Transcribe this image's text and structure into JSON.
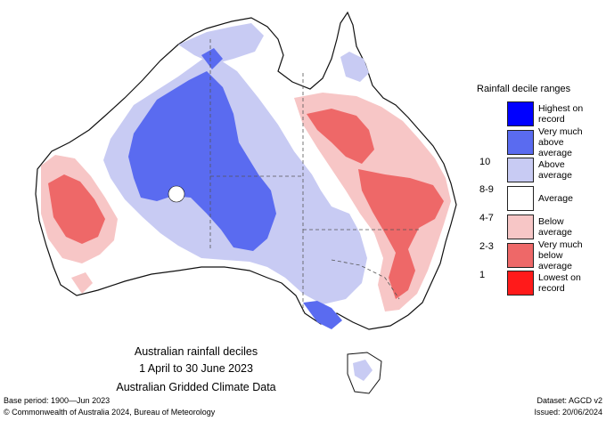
{
  "title": {
    "line1": "Australian rainfall deciles",
    "line2": "1 April to 30 June 2023",
    "line3": "Australian Gridded Climate Data"
  },
  "legend": {
    "title": "Rainfall decile ranges",
    "items": [
      {
        "range": "",
        "label_lines": [
          "Highest on",
          "record"
        ],
        "color": "#0000ff"
      },
      {
        "range": "10",
        "label_lines": [
          "Very much",
          "above average"
        ],
        "color": "#5a6bf0"
      },
      {
        "range": "8-9",
        "label_lines": [
          "Above average",
          ""
        ],
        "color": "#c8cbf3"
      },
      {
        "range": "4-7",
        "label_lines": [
          "Average",
          ""
        ],
        "color": "#ffffff"
      },
      {
        "range": "2-3",
        "label_lines": [
          "Below average",
          ""
        ],
        "color": "#f7c6c6"
      },
      {
        "range": "1",
        "label_lines": [
          "Very much",
          "below average"
        ],
        "color": "#ee6868"
      },
      {
        "range": "",
        "label_lines": [
          "Lowest on",
          "record"
        ],
        "color": "#ff1a1a"
      }
    ]
  },
  "footer": {
    "base_period": "Base period: 1900—Jun 2023",
    "copyright": "© Commonwealth of Australia 2024, Bureau of Meteorology",
    "dataset": "Dataset: AGCD v2",
    "issued": "Issued: 20/06/2024"
  },
  "colors": {
    "outline": "#111111",
    "border": "#555555"
  }
}
